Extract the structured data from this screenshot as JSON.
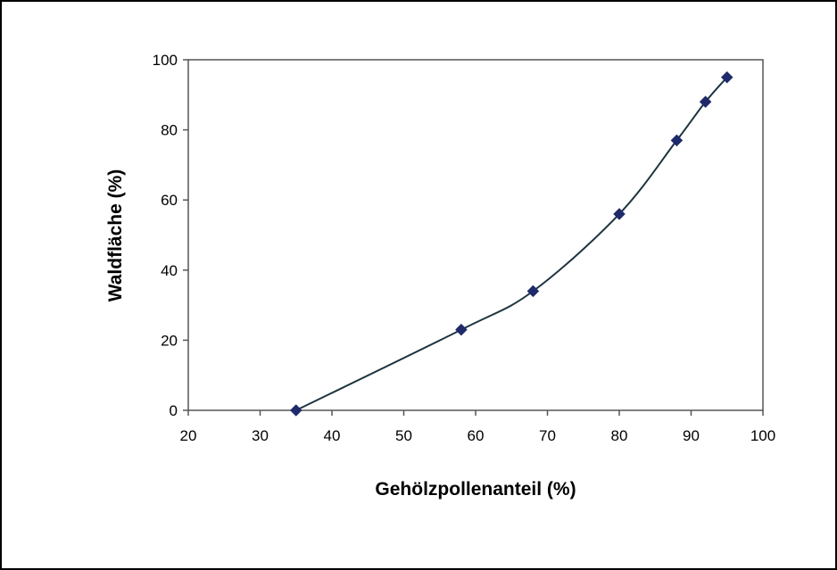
{
  "chart_data": {
    "type": "scatter",
    "title": "",
    "xlabel": "Gehölzpollenanteil (%)",
    "ylabel": "Waldfläche (%)",
    "xlim": [
      20,
      100
    ],
    "ylim": [
      0,
      100
    ],
    "xticks": [
      20,
      30,
      40,
      50,
      60,
      70,
      80,
      90,
      100
    ],
    "yticks": [
      0,
      20,
      40,
      60,
      80,
      100
    ],
    "grid": false,
    "legend": "none",
    "series": [
      {
        "x": [
          35,
          58,
          68,
          80,
          88,
          92,
          95
        ],
        "y": [
          0,
          23,
          34,
          56,
          77,
          88,
          95
        ],
        "marker": "diamond",
        "line": "smoothed",
        "marker_color": "#1f2a6b",
        "line_color": "#1e3440"
      }
    ]
  }
}
